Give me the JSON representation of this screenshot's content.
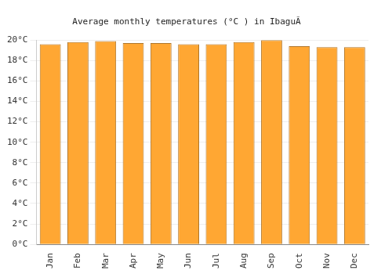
{
  "chart_data": {
    "type": "bar",
    "title": "Average monthly temperatures (°C ) in IbaguÃ",
    "categories": [
      "Jan",
      "Feb",
      "Mar",
      "Apr",
      "May",
      "Jun",
      "Jul",
      "Aug",
      "Sep",
      "Oct",
      "Nov",
      "Dec"
    ],
    "values": [
      19.6,
      19.8,
      19.9,
      19.7,
      19.7,
      19.6,
      19.6,
      19.8,
      20.0,
      19.4,
      19.3,
      19.3
    ],
    "color": "#ffa733",
    "ylim": [
      0,
      20
    ],
    "yticks": [
      {
        "value": 0,
        "label": "0°C"
      },
      {
        "value": 2,
        "label": "2°C"
      },
      {
        "value": 4,
        "label": "4°C"
      },
      {
        "value": 6,
        "label": "6°C"
      },
      {
        "value": 8,
        "label": "8°C"
      },
      {
        "value": 10,
        "label": "10°C"
      },
      {
        "value": 12,
        "label": "12°C"
      },
      {
        "value": 14,
        "label": "14°C"
      },
      {
        "value": 16,
        "label": "16°C"
      },
      {
        "value": 18,
        "label": "18°C"
      },
      {
        "value": 20,
        "label": "20°C"
      }
    ],
    "grid": true
  }
}
